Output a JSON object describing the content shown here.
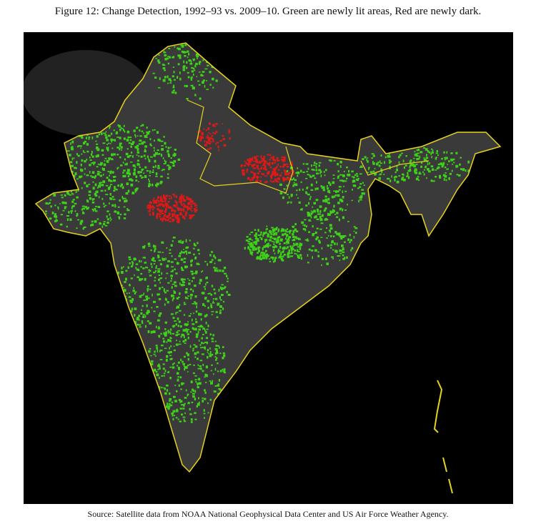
{
  "figure": {
    "title": "Figure 12: Change Detection, 1992–93 vs. 2009–10. Green are newly lit areas, Red are newly dark.",
    "source": "Source: Satellite data from NOAA National Geophysical Data Center and US Air Force Weather Agency."
  }
}
